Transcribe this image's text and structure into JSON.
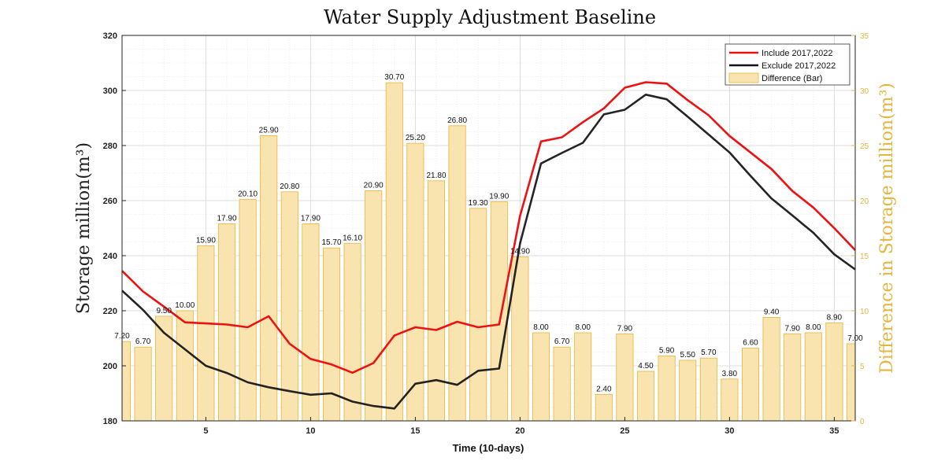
{
  "chart_data": {
    "type": "bar+line",
    "title": "Water Supply Adjustment Baseline",
    "xlabel": "Time (10-days)",
    "ylabel_left": "Storage million(m³)",
    "ylabel_right": "Difference in Storage million(m³)",
    "xlim": [
      1,
      36
    ],
    "ylim_left": [
      180,
      320
    ],
    "ylim_right": [
      0,
      35
    ],
    "xticks": [
      5,
      10,
      15,
      20,
      25,
      30,
      35
    ],
    "yticks_left": [
      180,
      200,
      220,
      240,
      260,
      280,
      300,
      320
    ],
    "yticks_right": [
      0,
      5,
      10,
      15,
      20,
      25,
      30,
      35
    ],
    "grid": true,
    "legend_position": "top-right",
    "colors": {
      "include": "#EE1111",
      "exclude": "#111111",
      "bar_fill": "#F9E4B0",
      "bar_edge": "#E5B53C",
      "right_axis": "#E5B53C"
    },
    "x": [
      1,
      2,
      3,
      4,
      5,
      6,
      7,
      8,
      9,
      10,
      11,
      12,
      13,
      14,
      15,
      16,
      17,
      18,
      19,
      20,
      21,
      22,
      23,
      24,
      25,
      26,
      27,
      28,
      29,
      30,
      31,
      32,
      33,
      34,
      35,
      36
    ],
    "series": [
      {
        "name": "Include 2017,2022",
        "kind": "line",
        "axis": "left",
        "values": [
          234.5,
          227,
          221.5,
          215.8,
          215.4,
          215,
          214,
          218,
          208,
          202.5,
          200.5,
          197.5,
          201,
          211,
          214,
          213,
          216,
          214,
          215,
          254.5,
          281.5,
          283,
          288.5,
          293.5,
          301,
          303,
          302.5,
          296.5,
          291,
          283.5,
          277.5,
          271.5,
          263.5,
          257.5,
          250,
          242
        ]
      },
      {
        "name": "Exclude 2017,2022",
        "kind": "line",
        "axis": "left",
        "values": [
          227.3,
          220.3,
          212,
          206,
          200,
          197.4,
          194,
          192.2,
          190.8,
          189.5,
          190,
          187,
          185.4,
          184.5,
          193.5,
          194.8,
          193.1,
          198.2,
          199,
          244.5,
          273.5,
          277.3,
          281,
          291.3,
          293,
          298.5,
          296.8,
          290.5,
          284,
          277.5,
          269,
          260.8,
          254.6,
          248.3,
          240.5,
          235
        ]
      },
      {
        "name": "Difference (Bar)",
        "kind": "bar",
        "axis": "right",
        "values": [
          7.2,
          6.7,
          9.5,
          10.0,
          15.9,
          17.9,
          20.1,
          25.9,
          20.8,
          17.9,
          15.7,
          16.1,
          20.9,
          30.7,
          25.2,
          21.8,
          26.8,
          19.3,
          19.9,
          14.9,
          8.0,
          6.7,
          8.0,
          2.4,
          7.9,
          4.5,
          5.9,
          5.5,
          5.7,
          3.8,
          6.6,
          9.4,
          7.9,
          8.0,
          8.9,
          7.0
        ]
      }
    ],
    "data_labels": [
      "7.20",
      "6.70",
      "9.50",
      "10.00",
      "15.90",
      "17.90",
      "20.10",
      "25.90",
      "20.80",
      "17.90",
      "15.70",
      "16.10",
      "20.90",
      "30.70",
      "25.20",
      "21.80",
      "26.80",
      "19.30",
      "19.90",
      "14.90",
      "8.00",
      "6.70",
      "8.00",
      "2.40",
      "7.90",
      "4.50",
      "5.90",
      "5.50",
      "5.70",
      "3.80",
      "6.60",
      "9.40",
      "7.90",
      "8.00",
      "8.90",
      "7.00"
    ]
  }
}
